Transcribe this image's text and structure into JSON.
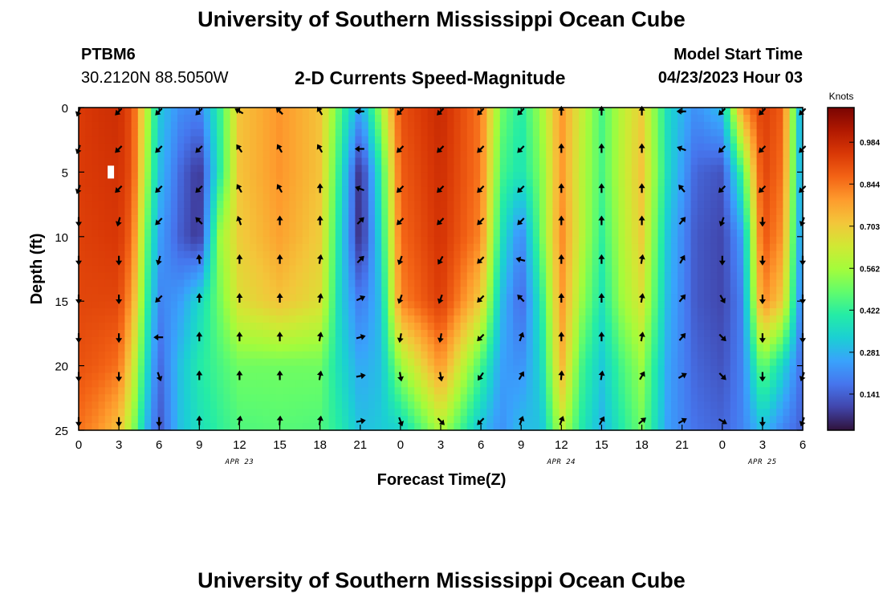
{
  "header": {
    "title": "University of Southern Mississippi Ocean Cube",
    "station": "PTBM6",
    "coords": "30.2120N  88.5050W",
    "subtitle": "2-D Currents Speed-Magnitude",
    "model_start_label": "Model Start Time",
    "model_start_value": "04/23/2023 Hour 03"
  },
  "footer": {
    "title": "University of Southern Mississippi Ocean Cube"
  },
  "chart_data": {
    "type": "heatmap",
    "title": "2-D Currents Speed-Magnitude",
    "xlabel": "Forecast Time(Z)",
    "ylabel": "Depth (ft)",
    "x_range_hours": [
      0,
      54
    ],
    "x_ticks": [
      {
        "hour": 0,
        "label": "0"
      },
      {
        "hour": 3,
        "label": "3"
      },
      {
        "hour": 6,
        "label": "6"
      },
      {
        "hour": 9,
        "label": "9"
      },
      {
        "hour": 12,
        "label": "12"
      },
      {
        "hour": 15,
        "label": "15"
      },
      {
        "hour": 18,
        "label": "18"
      },
      {
        "hour": 21,
        "label": "21"
      },
      {
        "hour": 24,
        "label": "0"
      },
      {
        "hour": 27,
        "label": "3"
      },
      {
        "hour": 30,
        "label": "6"
      },
      {
        "hour": 33,
        "label": "9"
      },
      {
        "hour": 36,
        "label": "12"
      },
      {
        "hour": 39,
        "label": "15"
      },
      {
        "hour": 42,
        "label": "18"
      },
      {
        "hour": 45,
        "label": "21"
      },
      {
        "hour": 48,
        "label": "0"
      },
      {
        "hour": 51,
        "label": "3"
      },
      {
        "hour": 54,
        "label": "6"
      }
    ],
    "date_labels": [
      {
        "hour": 12,
        "label": "APR 23"
      },
      {
        "hour": 36,
        "label": "APR 24"
      },
      {
        "hour": 51,
        "label": "APR 25"
      }
    ],
    "y_range_ft": [
      0,
      25
    ],
    "y_ticks": [
      0,
      5,
      10,
      15,
      20,
      25
    ],
    "colorbar": {
      "title": "Knots",
      "ticks": [
        "0.984",
        "0.844",
        "0.703",
        "0.562",
        "0.422",
        "0.281",
        "0.141"
      ],
      "tick_values": [
        0.984,
        0.844,
        0.703,
        0.562,
        0.422,
        0.281,
        0.141
      ],
      "range": [
        0.02,
        1.1
      ],
      "colors": [
        "#30123b",
        "#4145ab",
        "#4675ed",
        "#39a2fc",
        "#1bcfd4",
        "#24eca6",
        "#61fc6c",
        "#a4fc3b",
        "#d1e834",
        "#f3c63a",
        "#fe9b2d",
        "#f36315",
        "#d93806",
        "#b11901",
        "#7a0402"
      ]
    },
    "speed_profile_knots": [
      {
        "hour": 0,
        "values": [
          0.94,
          0.94,
          0.93,
          0.92,
          0.9,
          0.85
        ]
      },
      {
        "hour": 1.5,
        "values": [
          0.96,
          0.95,
          0.94,
          0.92,
          0.88,
          0.8
        ]
      },
      {
        "hour": 3,
        "values": [
          0.97,
          0.96,
          0.95,
          0.92,
          0.85,
          0.72
        ]
      },
      {
        "hour": 4,
        "values": [
          0.9,
          0.9,
          0.86,
          0.78,
          0.66,
          0.55
        ]
      },
      {
        "hour": 5,
        "values": [
          0.62,
          0.58,
          0.5,
          0.45,
          0.38,
          0.3
        ]
      },
      {
        "hour": 6,
        "values": [
          0.32,
          0.3,
          0.25,
          0.2,
          0.15,
          0.12
        ]
      },
      {
        "hour": 7.5,
        "values": [
          0.22,
          0.16,
          0.14,
          0.24,
          0.3,
          0.3
        ]
      },
      {
        "hour": 9,
        "values": [
          0.2,
          0.07,
          0.07,
          0.35,
          0.4,
          0.37
        ]
      },
      {
        "hour": 10.5,
        "values": [
          0.42,
          0.4,
          0.55,
          0.5,
          0.45,
          0.42
        ]
      },
      {
        "hour": 12,
        "values": [
          0.72,
          0.72,
          0.7,
          0.66,
          0.5,
          0.46
        ]
      },
      {
        "hour": 15,
        "values": [
          0.8,
          0.8,
          0.78,
          0.72,
          0.5,
          0.47
        ]
      },
      {
        "hour": 18,
        "values": [
          0.72,
          0.72,
          0.7,
          0.66,
          0.5,
          0.46
        ]
      },
      {
        "hour": 19.5,
        "values": [
          0.46,
          0.4,
          0.36,
          0.34,
          0.36,
          0.4
        ]
      },
      {
        "hour": 21,
        "values": [
          0.25,
          0.05,
          0.05,
          0.18,
          0.26,
          0.3
        ]
      },
      {
        "hour": 22.5,
        "values": [
          0.55,
          0.4,
          0.35,
          0.3,
          0.3,
          0.32
        ]
      },
      {
        "hour": 24,
        "values": [
          0.9,
          0.88,
          0.86,
          0.82,
          0.55,
          0.34
        ]
      },
      {
        "hour": 27,
        "values": [
          0.98,
          0.97,
          0.96,
          0.94,
          0.8,
          0.58
        ]
      },
      {
        "hour": 30,
        "values": [
          0.84,
          0.84,
          0.82,
          0.7,
          0.45,
          0.3
        ]
      },
      {
        "hour": 31.5,
        "values": [
          0.5,
          0.45,
          0.38,
          0.3,
          0.25,
          0.22
        ]
      },
      {
        "hour": 33,
        "values": [
          0.4,
          0.38,
          0.2,
          0.15,
          0.22,
          0.3
        ]
      },
      {
        "hour": 34.5,
        "values": [
          0.56,
          0.52,
          0.5,
          0.4,
          0.35,
          0.3
        ]
      },
      {
        "hour": 36,
        "values": [
          0.8,
          0.8,
          0.82,
          0.8,
          0.75,
          0.6
        ]
      },
      {
        "hour": 37.5,
        "values": [
          0.62,
          0.6,
          0.6,
          0.55,
          0.45,
          0.4
        ]
      },
      {
        "hour": 39,
        "values": [
          0.45,
          0.45,
          0.42,
          0.38,
          0.32,
          0.28
        ]
      },
      {
        "hour": 40.5,
        "values": [
          0.6,
          0.6,
          0.58,
          0.55,
          0.45,
          0.4
        ]
      },
      {
        "hour": 42,
        "values": [
          0.7,
          0.72,
          0.7,
          0.65,
          0.55,
          0.5
        ]
      },
      {
        "hour": 44,
        "values": [
          0.35,
          0.35,
          0.3,
          0.28,
          0.25,
          0.24
        ]
      },
      {
        "hour": 46,
        "values": [
          0.22,
          0.15,
          0.13,
          0.13,
          0.15,
          0.17
        ]
      },
      {
        "hour": 48,
        "values": [
          0.3,
          0.12,
          0.1,
          0.1,
          0.12,
          0.15
        ]
      },
      {
        "hour": 49.5,
        "values": [
          0.8,
          0.45,
          0.25,
          0.2,
          0.2,
          0.2
        ]
      },
      {
        "hour": 51,
        "values": [
          0.94,
          0.93,
          0.9,
          0.82,
          0.5,
          0.3
        ]
      },
      {
        "hour": 52.5,
        "values": [
          0.88,
          0.85,
          0.8,
          0.7,
          0.35,
          0.2
        ]
      },
      {
        "hour": 54,
        "values": [
          0.2,
          0.2,
          0.18,
          0.16,
          0.15,
          0.14
        ]
      }
    ],
    "vector_depths_ft": [
      0.3,
      3.2,
      6.3,
      8.8,
      11.8,
      14.8,
      17.8,
      20.8,
      24.3
    ],
    "vector_directions_deg": [
      {
        "hour": 0,
        "angles": [
          200,
          200,
          200,
          180,
          180,
          180,
          180,
          180,
          180
        ]
      },
      {
        "hour": 3,
        "angles": [
          225,
          225,
          225,
          195,
          180,
          180,
          180,
          180,
          180
        ]
      },
      {
        "hour": 6,
        "angles": [
          225,
          225,
          225,
          225,
          195,
          225,
          270,
          160,
          180
        ]
      },
      {
        "hour": 9,
        "angles": [
          225,
          225,
          225,
          315,
          355,
          0,
          0,
          0,
          0
        ]
      },
      {
        "hour": 12,
        "angles": [
          300,
          325,
          330,
          340,
          0,
          0,
          0,
          0,
          10
        ]
      },
      {
        "hour": 15,
        "angles": [
          315,
          330,
          330,
          0,
          0,
          0,
          0,
          0,
          5
        ]
      },
      {
        "hour": 18,
        "angles": [
          330,
          330,
          0,
          0,
          10,
          10,
          10,
          10,
          10
        ]
      },
      {
        "hour": 21,
        "angles": [
          270,
          270,
          290,
          45,
          45,
          65,
          75,
          80,
          80
        ]
      },
      {
        "hour": 24,
        "angles": [
          225,
          225,
          225,
          225,
          200,
          200,
          190,
          170,
          160
        ]
      },
      {
        "hour": 27,
        "angles": [
          225,
          225,
          225,
          225,
          210,
          200,
          190,
          170,
          135
        ]
      },
      {
        "hour": 30,
        "angles": [
          225,
          225,
          225,
          225,
          225,
          225,
          225,
          215,
          225
        ]
      },
      {
        "hour": 33,
        "angles": [
          225,
          225,
          225,
          225,
          285,
          315,
          20,
          30,
          20
        ]
      },
      {
        "hour": 36,
        "angles": [
          0,
          0,
          0,
          0,
          0,
          0,
          0,
          5,
          20
        ]
      },
      {
        "hour": 39,
        "angles": [
          0,
          0,
          0,
          0,
          0,
          0,
          0,
          10,
          30
        ]
      },
      {
        "hour": 42,
        "angles": [
          0,
          0,
          0,
          0,
          10,
          10,
          10,
          30,
          50
        ]
      },
      {
        "hour": 45,
        "angles": [
          270,
          290,
          320,
          40,
          30,
          40,
          40,
          60,
          60
        ]
      },
      {
        "hour": 48,
        "angles": [
          225,
          225,
          225,
          200,
          180,
          150,
          135,
          135,
          120
        ]
      },
      {
        "hour": 51,
        "angles": [
          225,
          225,
          225,
          180,
          180,
          180,
          180,
          180,
          180
        ]
      },
      {
        "hour": 54,
        "angles": [
          225,
          225,
          225,
          200,
          180,
          180,
          180,
          200,
          200
        ]
      }
    ]
  }
}
